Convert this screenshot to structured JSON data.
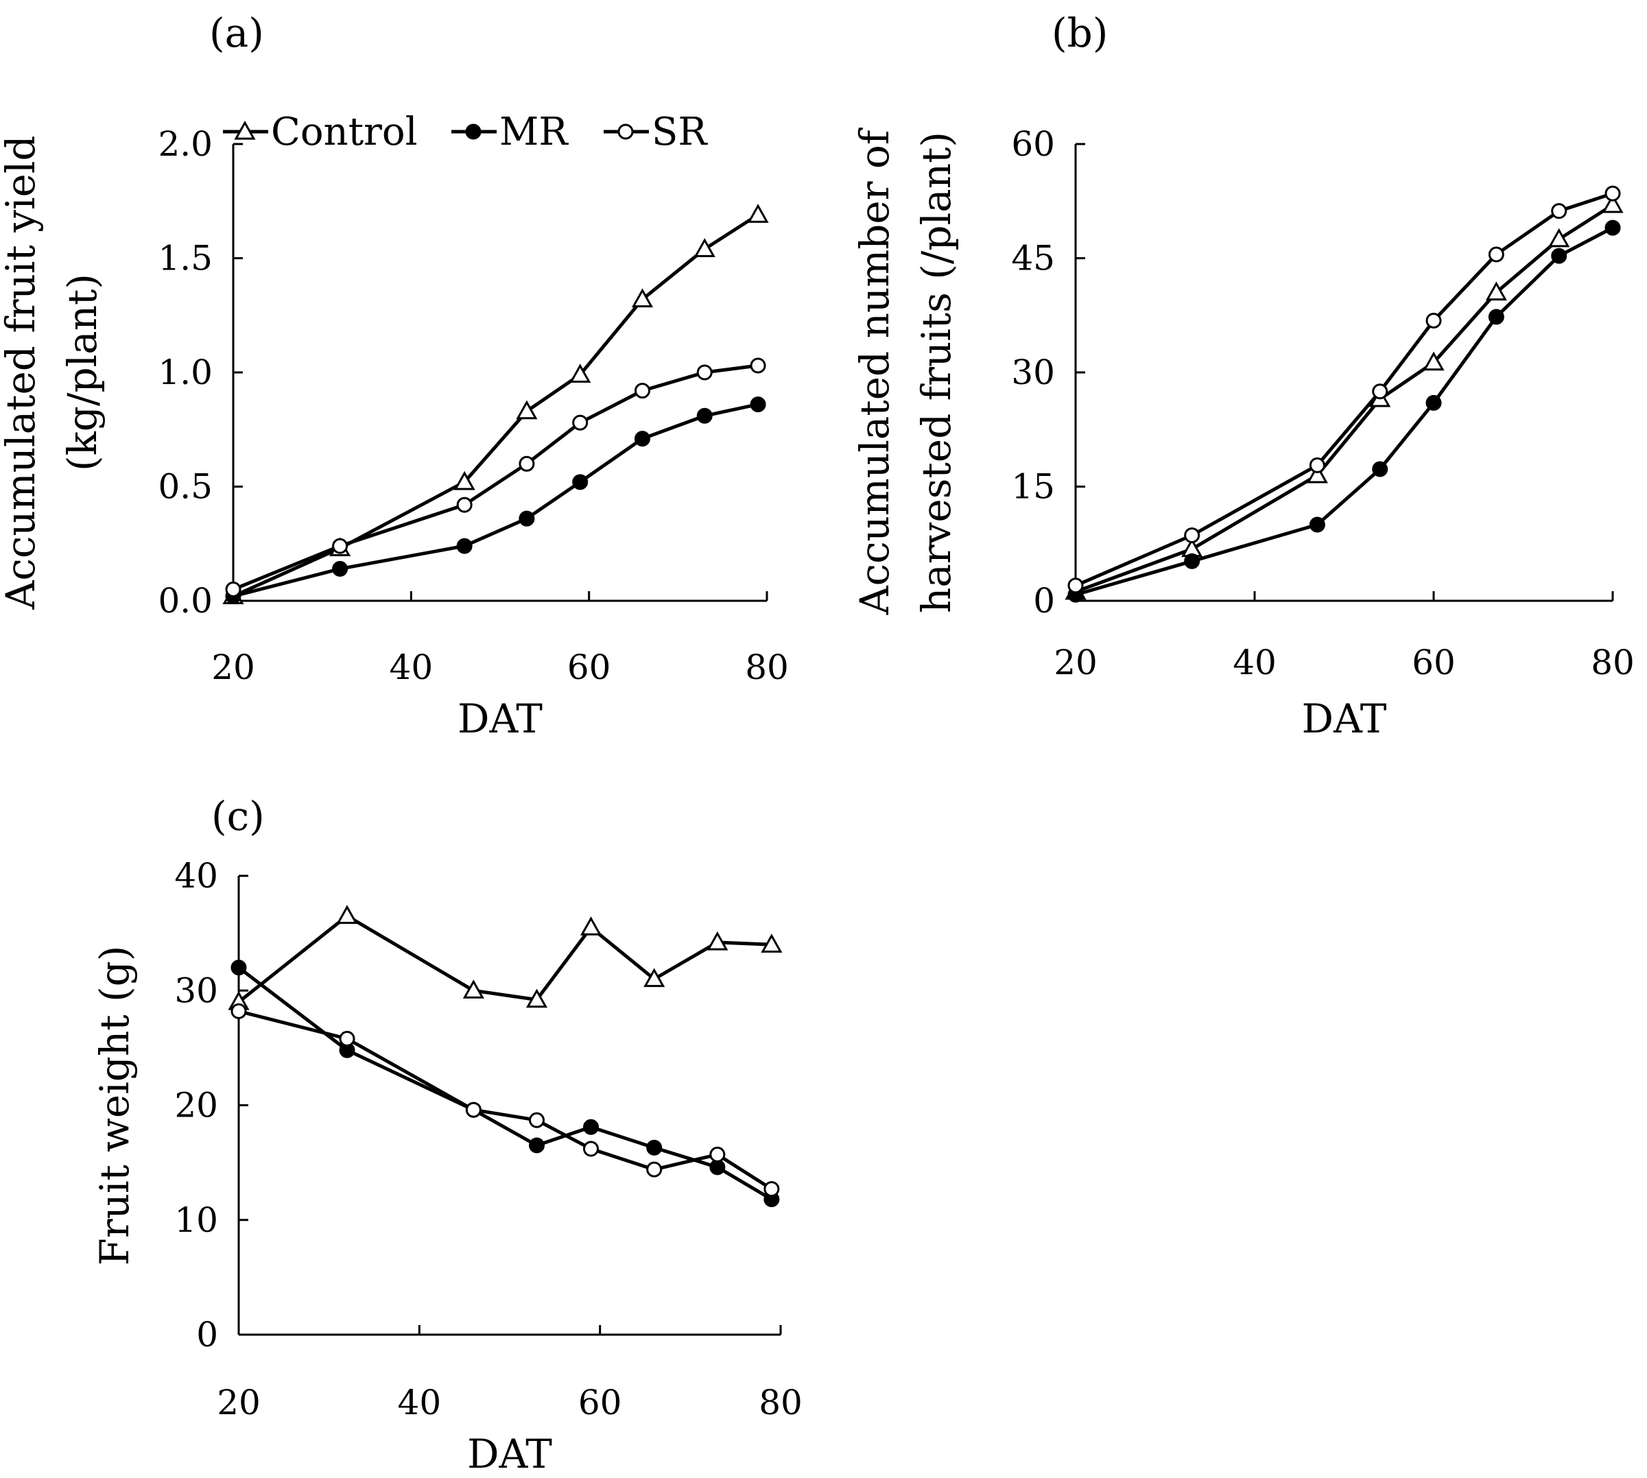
{
  "chart_data": [
    {
      "type": "line",
      "panel_label": "(a)",
      "xlabel": "DAT",
      "ylabel": [
        "Accumulated fruit yield",
        "(kg/plant)"
      ],
      "xlim": [
        20,
        80
      ],
      "ylim": [
        0,
        2.0
      ],
      "xticks": [
        20,
        40,
        60,
        80
      ],
      "xtick_labels": [
        "20",
        "40",
        "60",
        "80"
      ],
      "yticks": [
        0,
        0.5,
        1.0,
        1.5,
        2.0
      ],
      "ytick_labels": [
        "0.0",
        "0.5",
        "1.0",
        "1.5",
        "2.0"
      ],
      "legend": [
        "Control",
        "MR",
        "SR"
      ],
      "legend_position": "top",
      "series": [
        {
          "name": "Control",
          "marker": "triangle-open",
          "x": [
            20,
            32,
            46,
            53,
            59,
            66,
            73,
            79
          ],
          "values": [
            0.02,
            0.23,
            0.52,
            0.83,
            0.99,
            1.32,
            1.54,
            1.69
          ]
        },
        {
          "name": "MR",
          "marker": "circle-filled",
          "x": [
            20,
            32,
            46,
            53,
            59,
            66,
            73,
            79
          ],
          "values": [
            0.02,
            0.14,
            0.24,
            0.36,
            0.52,
            0.71,
            0.81,
            0.86
          ]
        },
        {
          "name": "SR",
          "marker": "circle-open",
          "x": [
            20,
            32,
            46,
            53,
            59,
            66,
            73,
            79
          ],
          "values": [
            0.05,
            0.24,
            0.42,
            0.6,
            0.78,
            0.92,
            1.0,
            1.03
          ]
        }
      ]
    },
    {
      "type": "line",
      "panel_label": "(b)",
      "xlabel": "DAT",
      "ylabel": [
        "Accumulated number of",
        "harvested fruits (/plant)"
      ],
      "xlim": [
        20,
        80
      ],
      "ylim": [
        0,
        60
      ],
      "xticks": [
        20,
        40,
        60,
        80
      ],
      "xtick_labels": [
        "20",
        "40",
        "60",
        "80"
      ],
      "yticks": [
        0,
        15,
        30,
        45,
        60
      ],
      "ytick_labels": [
        "0",
        "15",
        "30",
        "45",
        "60"
      ],
      "series": [
        {
          "name": "Control",
          "marker": "triangle-open",
          "x": [
            20,
            33,
            47,
            54,
            60,
            67,
            74,
            80
          ],
          "values": [
            1.2,
            6.8,
            16.5,
            26.5,
            31.3,
            40.5,
            47.5,
            52.0
          ]
        },
        {
          "name": "MR",
          "marker": "circle-filled",
          "x": [
            20,
            33,
            47,
            54,
            60,
            67,
            74,
            80
          ],
          "values": [
            0.8,
            5.2,
            10.0,
            17.3,
            26.0,
            37.3,
            45.3,
            49.0
          ]
        },
        {
          "name": "SR",
          "marker": "circle-open",
          "x": [
            20,
            33,
            47,
            54,
            60,
            67,
            74,
            80
          ],
          "values": [
            2.0,
            8.6,
            17.8,
            27.5,
            36.8,
            45.5,
            51.2,
            53.5
          ]
        }
      ]
    },
    {
      "type": "line",
      "panel_label": "(c)",
      "xlabel": "DAT",
      "ylabel": [
        "Fruit weight (g)"
      ],
      "xlim": [
        20,
        80
      ],
      "ylim": [
        0,
        40
      ],
      "xticks": [
        20,
        40,
        60,
        80
      ],
      "xtick_labels": [
        "20",
        "40",
        "60",
        "80"
      ],
      "yticks": [
        0,
        10,
        20,
        30,
        40
      ],
      "ytick_labels": [
        "0",
        "10",
        "20",
        "30",
        "40"
      ],
      "series": [
        {
          "name": "Control",
          "marker": "triangle-open",
          "x": [
            20,
            32,
            46,
            53,
            59,
            66,
            73,
            79
          ],
          "values": [
            29.0,
            36.5,
            30.0,
            29.2,
            35.5,
            31.0,
            34.2,
            34.0
          ]
        },
        {
          "name": "MR",
          "marker": "circle-filled",
          "x": [
            20,
            32,
            46,
            53,
            59,
            66,
            73,
            79
          ],
          "values": [
            32.0,
            24.8,
            19.6,
            16.5,
            18.1,
            16.3,
            14.6,
            11.8
          ]
        },
        {
          "name": "SR",
          "marker": "circle-open",
          "x": [
            20,
            32,
            46,
            53,
            59,
            66,
            73,
            79
          ],
          "values": [
            28.2,
            25.8,
            19.6,
            18.7,
            16.2,
            14.4,
            15.7,
            12.7
          ]
        }
      ]
    }
  ]
}
